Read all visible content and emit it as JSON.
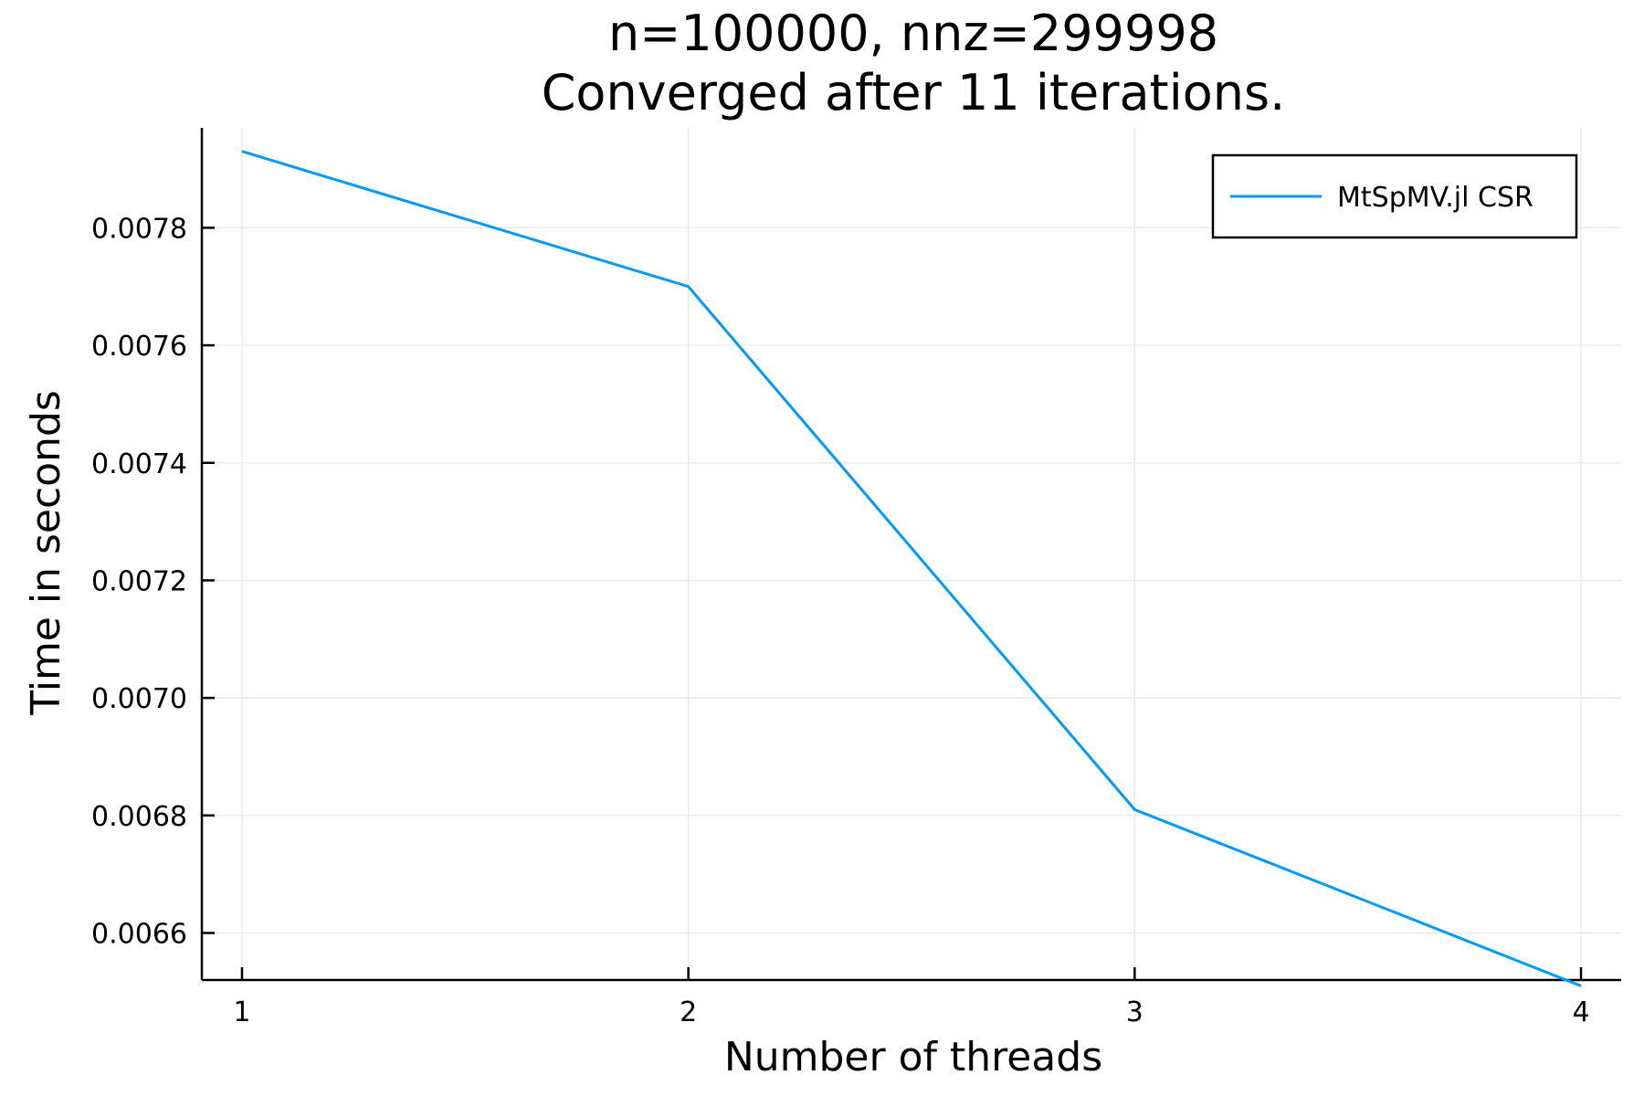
{
  "chart_data": {
    "type": "line",
    "title": "n=100000, nnz=299998",
    "subtitle": "Converged after 11 iterations.",
    "xlabel": "Number of threads",
    "ylabel": "Time in seconds",
    "x": [
      1,
      2,
      3,
      4
    ],
    "x_tick_labels": [
      "1",
      "2",
      "3",
      "4"
    ],
    "y_ticks": [
      0.0066,
      0.0068,
      0.007,
      0.0072,
      0.0074,
      0.0076,
      0.0078
    ],
    "y_tick_labels": [
      "0.0066",
      "0.0068",
      "0.0070",
      "0.0072",
      "0.0074",
      "0.0076",
      "0.0078"
    ],
    "xlim": [
      0.91,
      4.09
    ],
    "ylim": [
      0.00652,
      0.00797
    ],
    "grid": true,
    "legend_position": "top-right",
    "series": [
      {
        "name": "MtSpMV.jl CSR",
        "color": "#009af9",
        "values": [
          0.00793,
          0.0077,
          0.00681,
          0.00651
        ]
      }
    ]
  }
}
